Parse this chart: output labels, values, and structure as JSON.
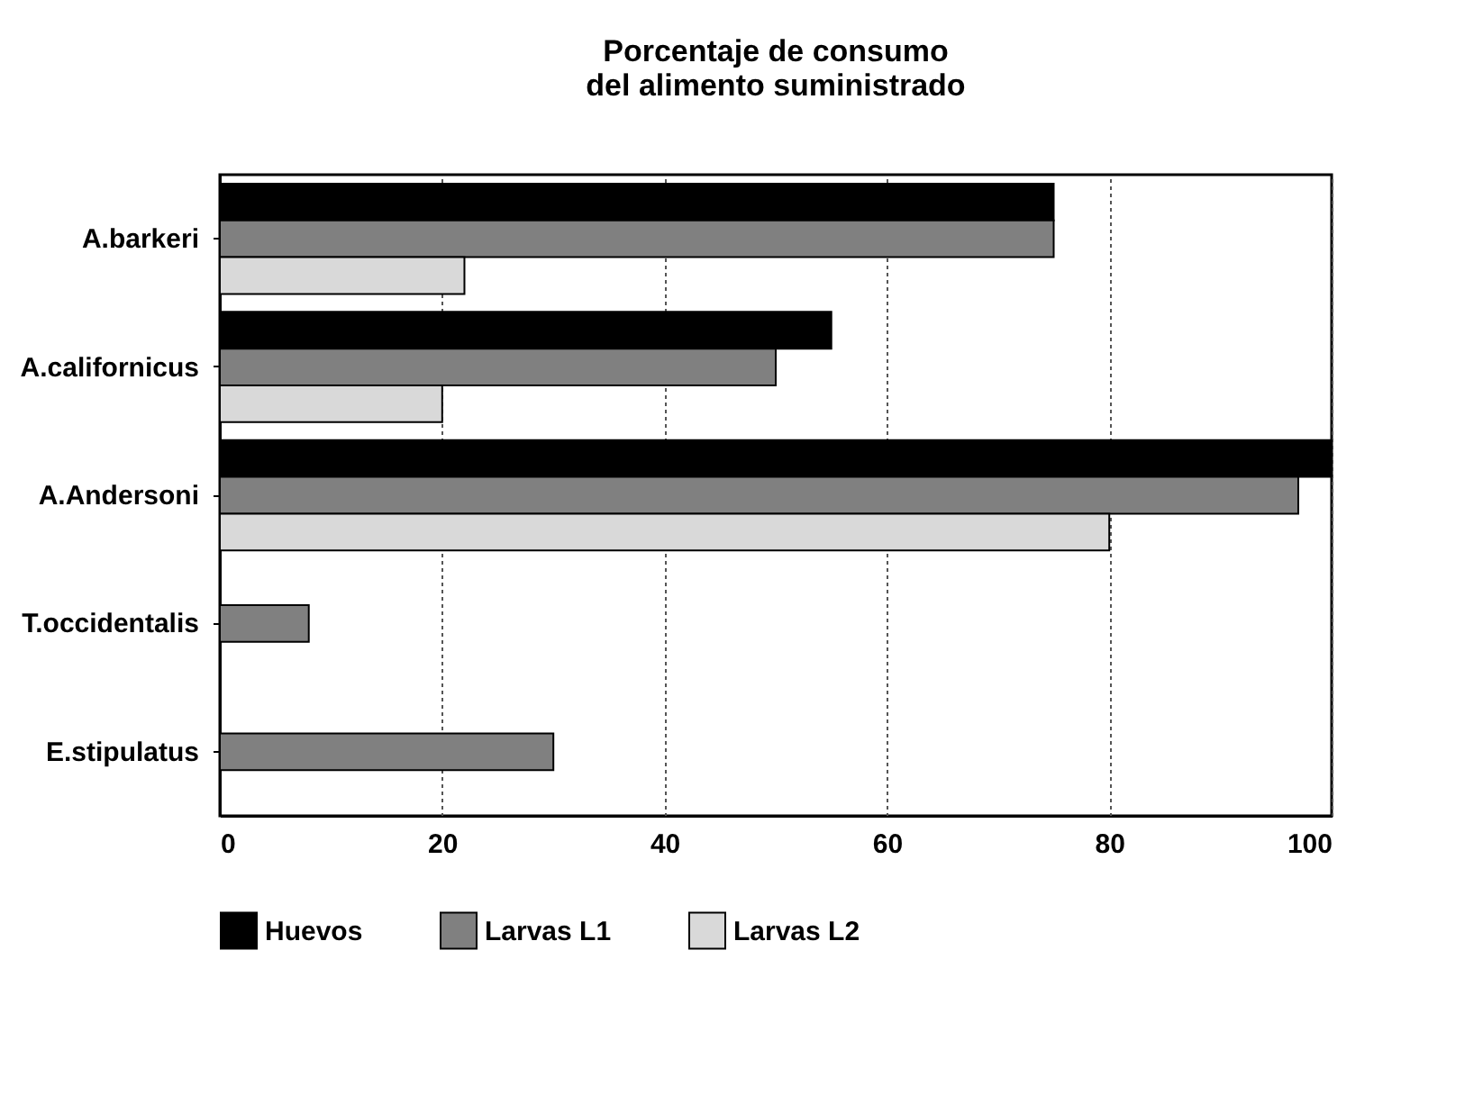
{
  "chart_data": {
    "type": "bar",
    "orientation": "horizontal",
    "title": "Porcentaje de consumo\ndel alimento suministrado",
    "categories": [
      "A.barkeri",
      "A.californicus",
      "A.Andersoni",
      "T.occidentalis",
      "E.stipulatus"
    ],
    "series": [
      {
        "name": "Huevos",
        "color": "#000000",
        "values": [
          75,
          55,
          100,
          null,
          null
        ]
      },
      {
        "name": "Larvas L1",
        "color": "#808080",
        "values": [
          75,
          50,
          97,
          8,
          30
        ]
      },
      {
        "name": "Larvas L2",
        "color": "#d9d9d9",
        "values": [
          22,
          20,
          80,
          null,
          null
        ]
      }
    ],
    "xlim": [
      0,
      100
    ],
    "xticks": [
      0,
      20,
      40,
      60,
      80,
      100
    ],
    "grid": "x",
    "legend": "bottom"
  }
}
